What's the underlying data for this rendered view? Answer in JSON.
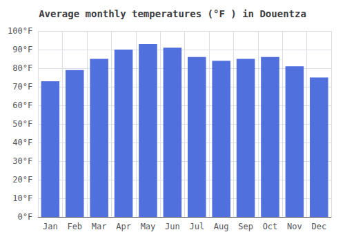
{
  "chart_data": {
    "type": "bar",
    "title": "Average monthly temperatures (°F ) in Douentza",
    "categories": [
      "Jan",
      "Feb",
      "Mar",
      "Apr",
      "May",
      "Jun",
      "Jul",
      "Aug",
      "Sep",
      "Oct",
      "Nov",
      "Dec"
    ],
    "values": [
      73,
      79,
      85,
      90,
      93,
      91,
      86,
      84,
      85,
      86,
      81,
      75
    ],
    "ylim": [
      0,
      100
    ],
    "yticks": [
      {
        "value": 0,
        "label": "0°F"
      },
      {
        "value": 10,
        "label": "10°F"
      },
      {
        "value": 20,
        "label": "20°F"
      },
      {
        "value": 30,
        "label": "30°F"
      },
      {
        "value": 40,
        "label": "40°F"
      },
      {
        "value": 50,
        "label": "50°F"
      },
      {
        "value": 60,
        "label": "60°F"
      },
      {
        "value": 70,
        "label": "70°F"
      },
      {
        "value": 80,
        "label": "80°F"
      },
      {
        "value": 90,
        "label": "90°F"
      },
      {
        "value": 100,
        "label": "100°F"
      }
    ],
    "grid": true
  }
}
